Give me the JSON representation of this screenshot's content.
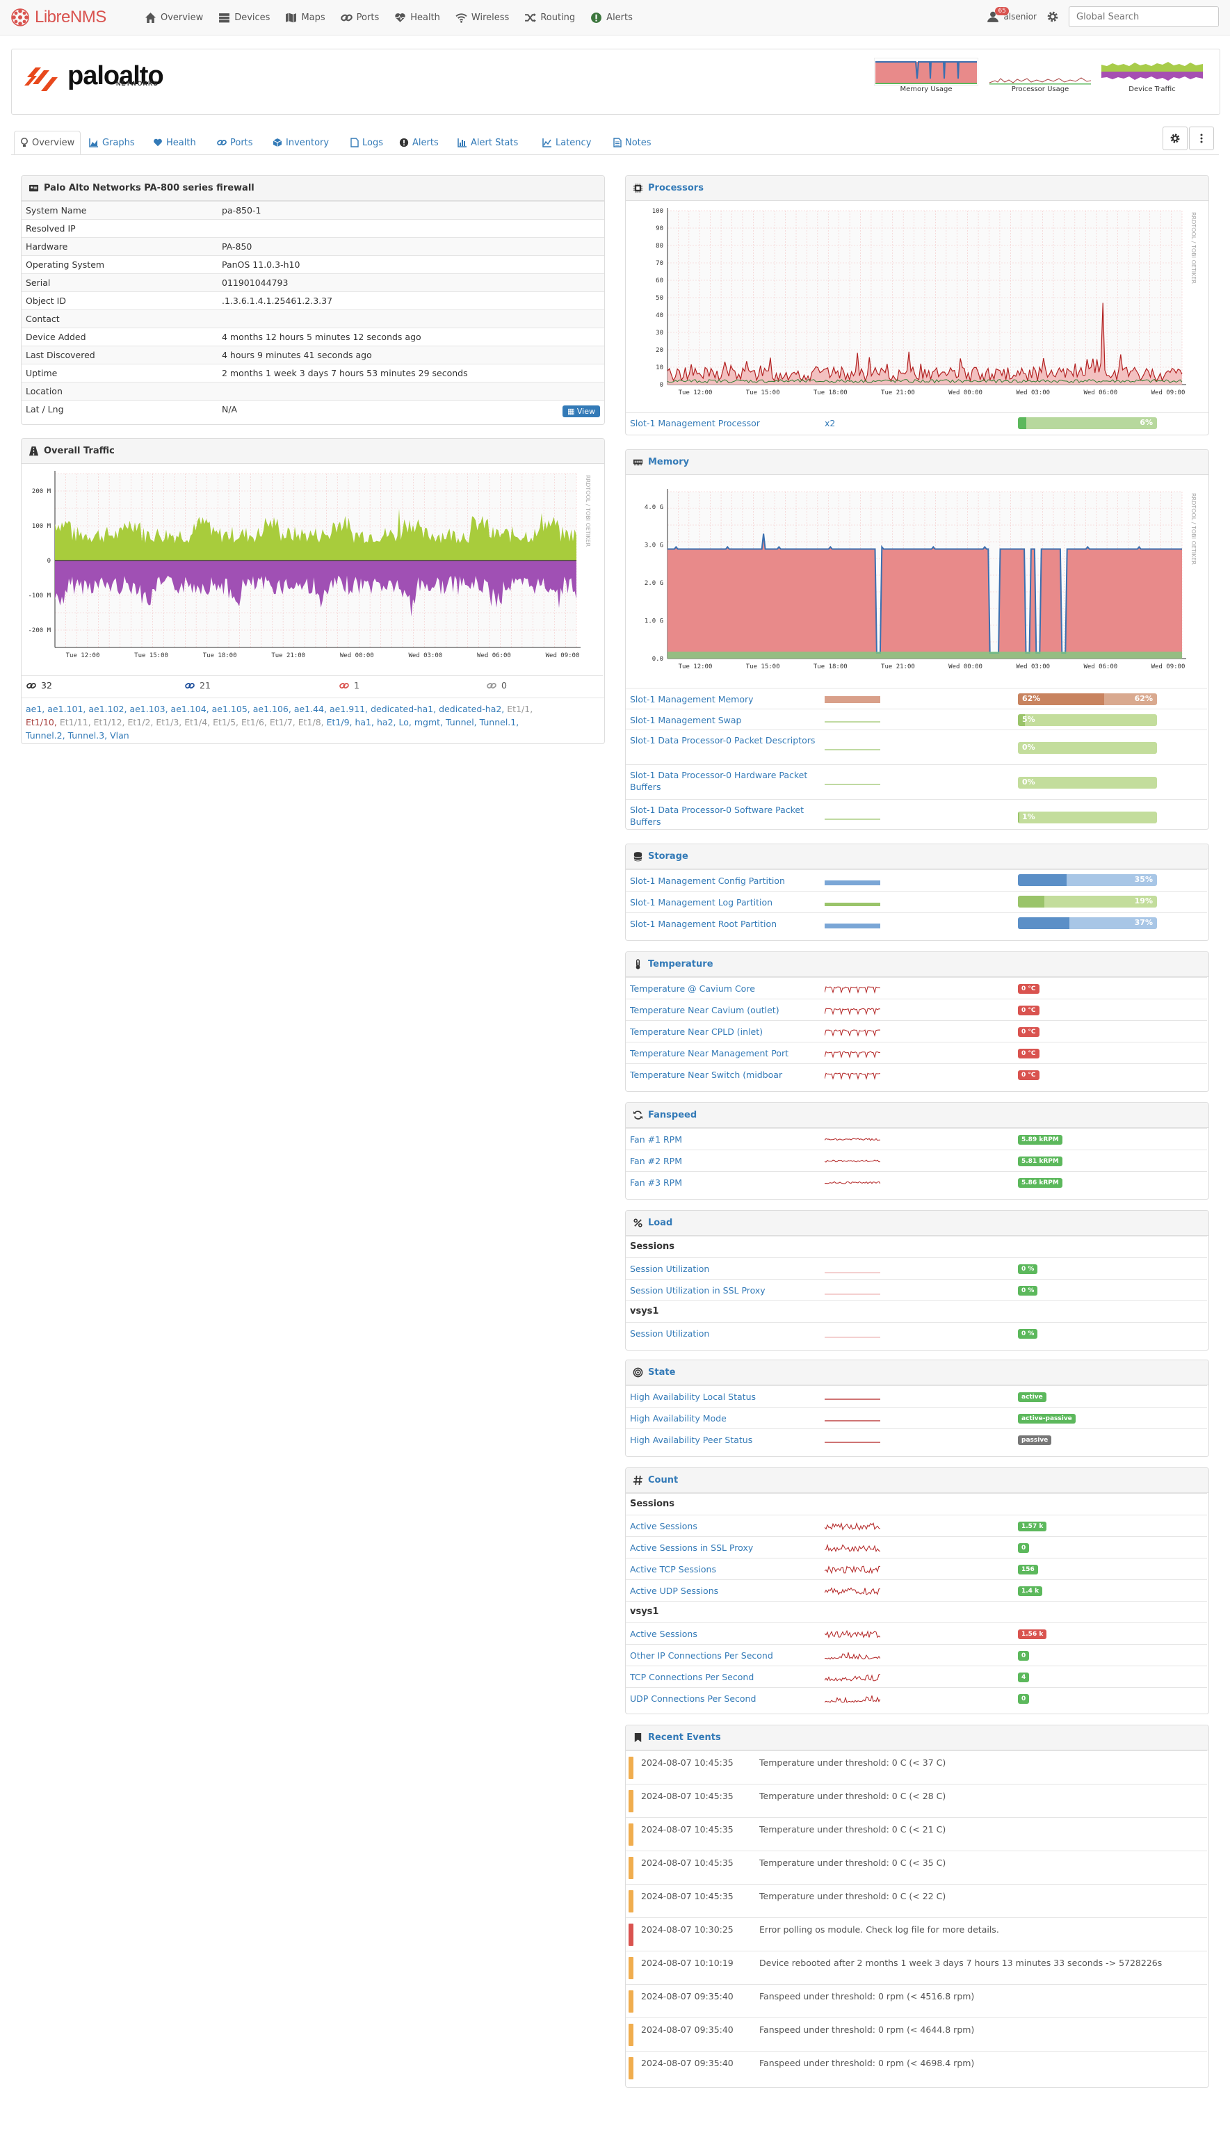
{
  "nav": {
    "brand": "LibreNMS",
    "items": [
      "Overview",
      "Devices",
      "Maps",
      "Ports",
      "Health",
      "Wireless",
      "Routing",
      "Alerts"
    ],
    "alert_count": "65",
    "user": "alsenior",
    "search_placeholder": "Global Search"
  },
  "header": {
    "logo_word": "paloalto",
    "logo_sub": "NETWORKS",
    "minis": [
      "Memory Usage",
      "Processor Usage",
      "Device Traffic"
    ]
  },
  "tabs": [
    "Overview",
    "Graphs",
    "Health",
    "Ports",
    "Inventory",
    "Logs",
    "Alerts",
    "Alert Stats",
    "Latency",
    "Notes"
  ],
  "overview": {
    "title": "Palo Alto Networks PA-800 series firewall",
    "rows": [
      {
        "k": "System Name",
        "v": "pa-850-1"
      },
      {
        "k": "Resolved IP",
        "v": ""
      },
      {
        "k": "Hardware",
        "v": "PA-850"
      },
      {
        "k": "Operating System",
        "v": "PanOS 11.0.3-h10"
      },
      {
        "k": "Serial",
        "v": "011901044793"
      },
      {
        "k": "Object ID",
        "v": ".1.3.6.1.4.1.25461.2.3.37"
      },
      {
        "k": "Contact",
        "v": ""
      },
      {
        "k": "Device Added",
        "v": "4 months 12 hours 5 minutes 12 seconds ago"
      },
      {
        "k": "Last Discovered",
        "v": "4 hours 9 minutes 41 seconds ago"
      },
      {
        "k": "Uptime",
        "v": "2 months 1 week 3 days 7 hours 53 minutes 29 seconds"
      },
      {
        "k": "Location",
        "v": ""
      },
      {
        "k": "Lat / Lng",
        "v": "N/A"
      }
    ],
    "view_button": "View"
  },
  "traffic": {
    "title": "Overall Traffic",
    "yticks": [
      "200 M",
      "100 M",
      "0",
      "-100 M",
      "-200 M"
    ],
    "xticks": [
      "Tue 12:00",
      "Tue 15:00",
      "Tue 18:00",
      "Tue 21:00",
      "Wed 00:00",
      "Wed 03:00",
      "Wed 06:00",
      "Wed 09:00"
    ],
    "watermark": "RRDTOOL / TOBI OETIKER",
    "counts": [
      "32",
      "21",
      "1",
      "0"
    ],
    "ports_normal": [
      "ae1",
      "ae1.101",
      "ae1.102",
      "ae1.103",
      "ae1.104",
      "ae1.105",
      "ae1.106",
      "ae1.44",
      "ae1.911",
      "dedicated-ha1",
      "dedicated-ha2"
    ],
    "ports_line1_dim": [
      "Et1/1,"
    ],
    "ports_line2_red": "Et1/10,",
    "ports_line2_dim": [
      "Et1/11,",
      "Et1/12,",
      "Et1/2,",
      "Et1/3,",
      "Et1/4,",
      "Et1/5,",
      "Et1/6,",
      "Et1/7,",
      "Et1/8,"
    ],
    "ports_line2_normal": [
      "Et1/9,",
      "ha1,",
      "ha2,",
      "Lo,",
      "mgmt,",
      "Tunnel,",
      "Tunnel.1,"
    ],
    "ports_line3": [
      "Tunnel.2,",
      "Tunnel.3,",
      "Vlan"
    ]
  },
  "processors": {
    "title": "Processors",
    "yticks": [
      "100",
      "90",
      "80",
      "70",
      "60",
      "50",
      "40",
      "30",
      "20",
      "10",
      "0"
    ],
    "xticks": [
      "Tue 12:00",
      "Tue 15:00",
      "Tue 18:00",
      "Tue 21:00",
      "Wed 00:00",
      "Wed 03:00",
      "Wed 06:00",
      "Wed 09:00"
    ],
    "row": {
      "name": "Slot-1 Management Processor",
      "count": "x2",
      "pct": "6%",
      "value": 6
    }
  },
  "memory": {
    "title": "Memory",
    "yticks": [
      "4.0 G",
      "3.0 G",
      "2.0 G",
      "1.0 G",
      "0.0"
    ],
    "xticks": [
      "Tue 12:00",
      "Tue 15:00",
      "Tue 18:00",
      "Tue 21:00",
      "Wed 00:00",
      "Wed 03:00",
      "Wed 06:00",
      "Wed 09:00"
    ],
    "rows": [
      {
        "name": "Slot-1 Management Memory",
        "pct": "62%",
        "value": 62,
        "pct2": "62%"
      },
      {
        "name": "Slot-1 Management Swap",
        "pct": "5%",
        "value": 5
      },
      {
        "name": "Slot-1 Data Processor-0 Packet Descriptors",
        "pct": "0%",
        "value": 0
      },
      {
        "name": "Slot-1 Data Processor-0 Hardware Packet Buffers",
        "pct": "0%",
        "value": 0
      },
      {
        "name": "Slot-1 Data Processor-0 Software Packet Buffers",
        "pct": "1%",
        "value": 1
      }
    ]
  },
  "storage": {
    "title": "Storage",
    "rows": [
      {
        "name": "Slot-1 Management Config Partition",
        "pct": "35%",
        "value": 35
      },
      {
        "name": "Slot-1 Management Log Partition",
        "pct": "19%",
        "value": 19
      },
      {
        "name": "Slot-1 Management Root Partition",
        "pct": "37%",
        "value": 37
      }
    ]
  },
  "temperature": {
    "title": "Temperature",
    "rows": [
      {
        "name": "Temperature @ Cavium Core",
        "val": "0 °C"
      },
      {
        "name": "Temperature Near Cavium (outlet)",
        "val": "0 °C"
      },
      {
        "name": "Temperature Near CPLD (inlet)",
        "val": "0 °C"
      },
      {
        "name": "Temperature Near Management Port",
        "val": "0 °C"
      },
      {
        "name": "Temperature Near Switch (midboar",
        "val": "0 °C"
      }
    ]
  },
  "fanspeed": {
    "title": "Fanspeed",
    "rows": [
      {
        "name": "Fan #1 RPM",
        "val": "5.89 kRPM"
      },
      {
        "name": "Fan #2 RPM",
        "val": "5.81 kRPM"
      },
      {
        "name": "Fan #3 RPM",
        "val": "5.86 kRPM"
      }
    ]
  },
  "load": {
    "title": "Load",
    "section1": "Sessions",
    "rows1": [
      {
        "name": "Session Utilization",
        "val": "0 %"
      },
      {
        "name": "Session Utilization in SSL Proxy",
        "val": "0 %"
      }
    ],
    "section2": "vsys1",
    "rows2": [
      {
        "name": "Session Utilization",
        "val": "0 %"
      }
    ]
  },
  "state": {
    "title": "State",
    "rows": [
      {
        "name": "High Availability Local Status",
        "val": "active",
        "color": "#5cb85c"
      },
      {
        "name": "High Availability Mode",
        "val": "active-passive",
        "color": "#5cb85c"
      },
      {
        "name": "High Availability Peer Status",
        "val": "passive",
        "color": "#777777"
      }
    ]
  },
  "count": {
    "title": "Count",
    "section1": "Sessions",
    "rows1": [
      {
        "name": "Active Sessions",
        "val": "1.57 k",
        "color": "#5cb85c"
      },
      {
        "name": "Active Sessions in SSL Proxy",
        "val": "0",
        "color": "#5cb85c"
      },
      {
        "name": "Active TCP Sessions",
        "val": "156",
        "color": "#5cb85c"
      },
      {
        "name": "Active UDP Sessions",
        "val": "1.4 k",
        "color": "#5cb85c"
      }
    ],
    "section2": "vsys1",
    "rows2": [
      {
        "name": "Active Sessions",
        "val": "1.56 k",
        "color": "#d9534f"
      },
      {
        "name": "Other IP Connections Per Second",
        "val": "0",
        "color": "#5cb85c"
      },
      {
        "name": "TCP Connections Per Second",
        "val": "4",
        "color": "#5cb85c"
      },
      {
        "name": "UDP Connections Per Second",
        "val": "0",
        "color": "#5cb85c"
      }
    ]
  },
  "events": {
    "title": "Recent Events",
    "rows": [
      {
        "dt": "2024-08-07 10:45:35",
        "msg": "Temperature under threshold: 0 C (< 37 C)",
        "color": "#f0ad4e"
      },
      {
        "dt": "2024-08-07 10:45:35",
        "msg": "Temperature under threshold: 0 C (< 28 C)",
        "color": "#f0ad4e"
      },
      {
        "dt": "2024-08-07 10:45:35",
        "msg": "Temperature under threshold: 0 C (< 21 C)",
        "color": "#f0ad4e"
      },
      {
        "dt": "2024-08-07 10:45:35",
        "msg": "Temperature under threshold: 0 C (< 35 C)",
        "color": "#f0ad4e"
      },
      {
        "dt": "2024-08-07 10:45:35",
        "msg": "Temperature under threshold: 0 C (< 22 C)",
        "color": "#f0ad4e"
      },
      {
        "dt": "2024-08-07 10:30:25",
        "msg": "Error polling os module. Check log file for more details.",
        "color": "#d9534f"
      },
      {
        "dt": "2024-08-07 10:10:19",
        "msg": "Device rebooted after 2 months 1 week 3 days 7 hours 13 minutes 33 seconds -> 5728226s",
        "color": "#f0ad4e"
      },
      {
        "dt": "2024-08-07 09:35:40",
        "msg": "Fanspeed under threshold: 0 rpm (< 4516.8 rpm)",
        "color": "#f0ad4e"
      },
      {
        "dt": "2024-08-07 09:35:40",
        "msg": "Fanspeed under threshold: 0 rpm (< 4644.8 rpm)",
        "color": "#f0ad4e"
      },
      {
        "dt": "2024-08-07 09:35:40",
        "msg": "Fanspeed under threshold: 0 rpm (< 4698.4 rpm)",
        "color": "#f0ad4e"
      }
    ]
  }
}
